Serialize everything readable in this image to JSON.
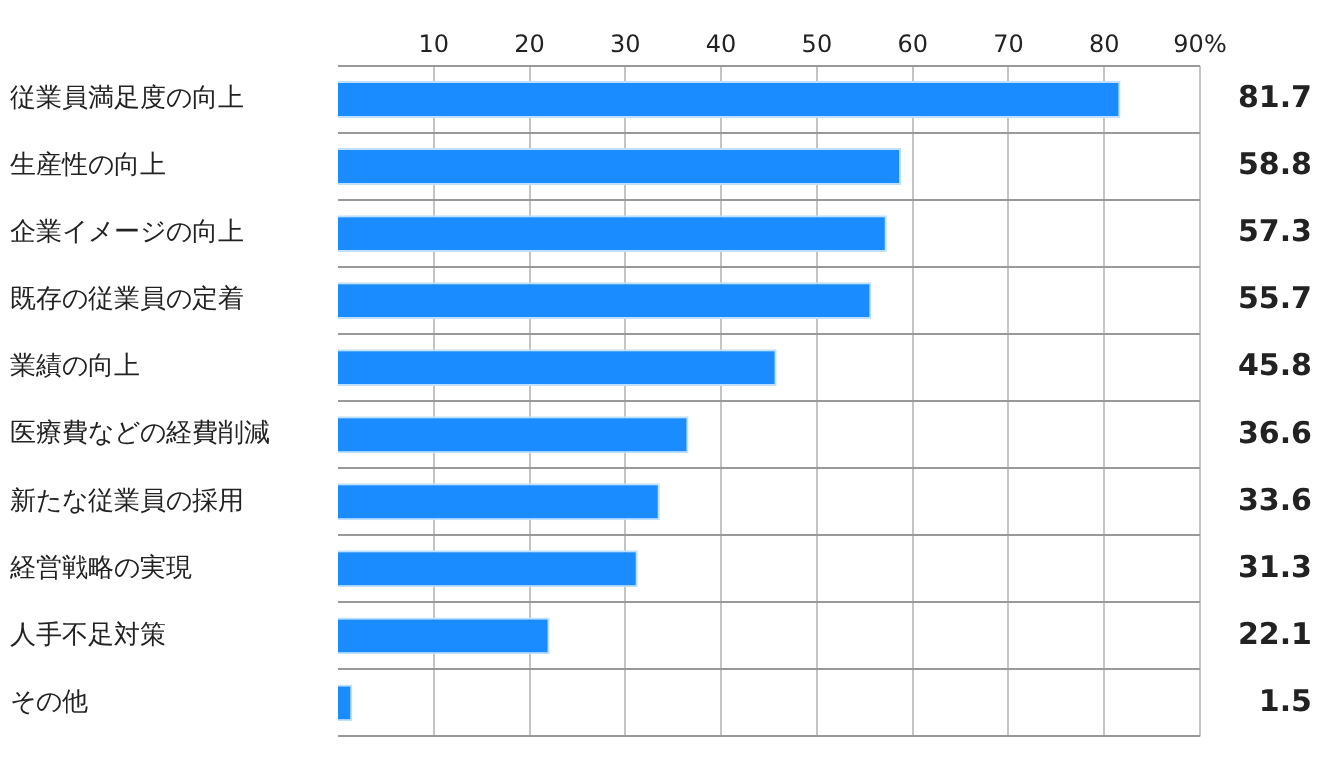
{
  "chart_data": {
    "type": "bar",
    "orientation": "horizontal",
    "categories": [
      "従業員満足度の向上",
      "生産性の向上",
      "企業イメージの向上",
      "既存の従業員の定着",
      "業績の向上",
      "医療費などの経費削減",
      "新たな従業員の採用",
      "経営戦略の実現",
      "人手不足対策",
      "その他"
    ],
    "values": [
      81.7,
      58.8,
      57.3,
      55.7,
      45.8,
      36.6,
      33.6,
      31.3,
      22.1,
      1.5
    ],
    "color": "#1a8cff",
    "xlim": [
      0,
      90
    ],
    "xticks": [
      10,
      20,
      30,
      40,
      50,
      60,
      70,
      80,
      {
        "value": 90,
        "label": "90%"
      }
    ],
    "grid": true,
    "data_labels": true
  }
}
